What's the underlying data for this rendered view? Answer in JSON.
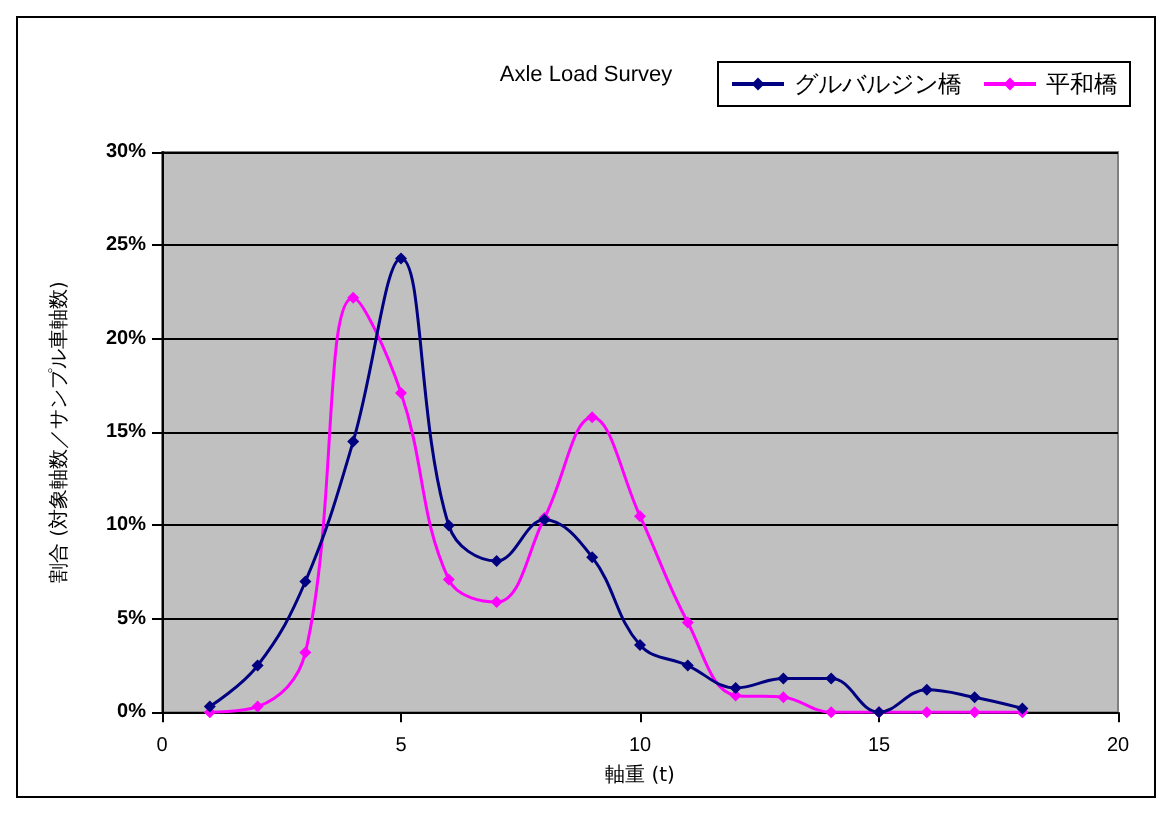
{
  "chart_data": {
    "type": "line",
    "title": "Axle Load Survey",
    "xlabel": "軸重 (t)",
    "ylabel": "割合 (対象軸数／サンプル車軸数)",
    "x": [
      1,
      2,
      3,
      4,
      5,
      6,
      7,
      8,
      9,
      10,
      11,
      12,
      13,
      14,
      15,
      16,
      17,
      18
    ],
    "series": [
      {
        "name": "グルバルジン橋",
        "color": "#000080",
        "values": [
          0.3,
          2.5,
          7,
          14.5,
          24.3,
          10,
          8.1,
          10.3,
          8.3,
          3.6,
          2.5,
          1.3,
          1.8,
          1.8,
          0,
          1.2,
          0.8,
          0.2
        ]
      },
      {
        "name": "平和橋",
        "color": "#ff00ff",
        "values": [
          0,
          0.3,
          3.2,
          22.2,
          17.1,
          7.1,
          5.9,
          10.4,
          15.8,
          10.5,
          4.8,
          0.9,
          0.8,
          0,
          0,
          0,
          0,
          0
        ]
      }
    ],
    "xlim": [
      0,
      20
    ],
    "xticks": [
      0,
      5,
      10,
      15,
      20
    ],
    "ylim": [
      0,
      30
    ],
    "yticks": [
      {
        "value": 0,
        "label": "0%"
      },
      {
        "value": 5,
        "label": "5%"
      },
      {
        "value": 10,
        "label": "10%"
      },
      {
        "value": 15,
        "label": "15%"
      },
      {
        "value": 20,
        "label": "20%"
      },
      {
        "value": 25,
        "label": "25%"
      },
      {
        "value": 30,
        "label": "30%"
      }
    ],
    "grid": "y",
    "legend": "top right",
    "marker": "diamond",
    "line_style": "solid"
  }
}
